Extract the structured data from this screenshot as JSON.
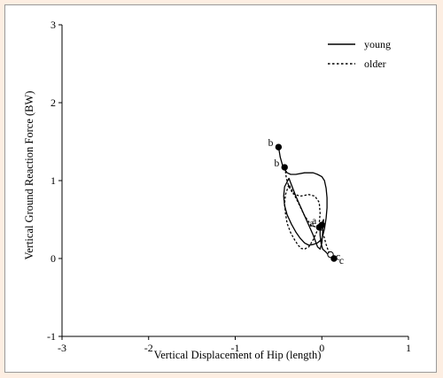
{
  "chart_data": {
    "type": "line",
    "title": "",
    "xlabel": "Vertical Displacement of Hip (length)",
    "ylabel": "Vertical Ground Reaction Force (BW)",
    "xlim": [
      -3,
      1
    ],
    "ylim": [
      -1,
      3
    ],
    "x_ticks": [
      "-3",
      "-2",
      "-1",
      "0",
      "1"
    ],
    "y_ticks": [
      "-1",
      "0",
      "1",
      "2",
      "3"
    ],
    "grid": false,
    "legend_position": "top-right",
    "series": [
      {
        "name": "young",
        "style": "solid",
        "x": [
          -0.5,
          -0.48,
          -0.45,
          -0.4,
          -0.36,
          -0.3,
          -0.2,
          -0.1,
          -0.05,
          0.0,
          0.03,
          0.05,
          0.06,
          0.06,
          0.05,
          0.03,
          0.0,
          -0.05,
          -0.1,
          -0.15,
          -0.2,
          -0.25,
          -0.3,
          -0.35,
          -0.4,
          -0.43,
          -0.44,
          -0.43,
          -0.38,
          -0.3,
          -0.2,
          -0.1,
          -0.05,
          -0.02,
          0.0,
          0.02,
          0.0,
          -0.02,
          -0.02,
          -0.01,
          0.01,
          0.05,
          0.08,
          0.1,
          0.12
        ],
        "y": [
          1.43,
          1.3,
          1.18,
          1.1,
          1.08,
          1.08,
          1.1,
          1.1,
          1.08,
          1.05,
          1.0,
          0.9,
          0.78,
          0.65,
          0.52,
          0.38,
          0.25,
          0.2,
          0.18,
          0.17,
          0.2,
          0.26,
          0.34,
          0.44,
          0.56,
          0.68,
          0.8,
          0.92,
          1.03,
          0.8,
          0.55,
          0.3,
          0.15,
          0.12,
          0.2,
          0.5,
          0.45,
          0.4,
          0.3,
          0.2,
          0.12,
          0.08,
          0.04,
          0.02,
          0.0
        ]
      },
      {
        "name": "older",
        "style": "dashed",
        "x": [
          -0.43,
          -0.42,
          -0.41,
          -0.38,
          -0.33,
          -0.25,
          -0.15,
          -0.08,
          -0.03,
          -0.02,
          -0.03,
          -0.06,
          -0.1,
          -0.15,
          -0.2,
          -0.24,
          -0.28,
          -0.32,
          -0.36,
          -0.4,
          -0.42,
          -0.43,
          -0.42,
          -0.38,
          -0.3,
          -0.2,
          -0.12,
          -0.05,
          -0.01,
          0.02,
          0.05,
          0.08,
          0.1
        ],
        "y": [
          1.17,
          1.12,
          1.03,
          0.92,
          0.83,
          0.8,
          0.82,
          0.8,
          0.72,
          0.58,
          0.45,
          0.34,
          0.24,
          0.15,
          0.12,
          0.13,
          0.18,
          0.25,
          0.33,
          0.45,
          0.58,
          0.7,
          0.82,
          0.95,
          0.78,
          0.55,
          0.42,
          0.4,
          0.38,
          0.3,
          0.18,
          0.08,
          0.05
        ]
      }
    ],
    "markers": [
      {
        "label": "b",
        "x": -0.5,
        "y": 1.43,
        "fill": "#000000",
        "label_side": "left"
      },
      {
        "label": "b",
        "x": -0.43,
        "y": 1.17,
        "fill": "#000000",
        "label_side": "left"
      },
      {
        "label": "a",
        "x": 0.0,
        "y": 0.43,
        "fill": "#000000",
        "label_side": "left"
      },
      {
        "label": "a",
        "x": -0.03,
        "y": 0.4,
        "fill": "#000000",
        "label_side": "left"
      },
      {
        "label": "c",
        "x": 0.1,
        "y": 0.05,
        "fill": "#ffffff",
        "label_side": "right"
      },
      {
        "label": "c",
        "x": 0.14,
        "y": 0.0,
        "fill": "#000000",
        "label_side": "right"
      }
    ]
  }
}
